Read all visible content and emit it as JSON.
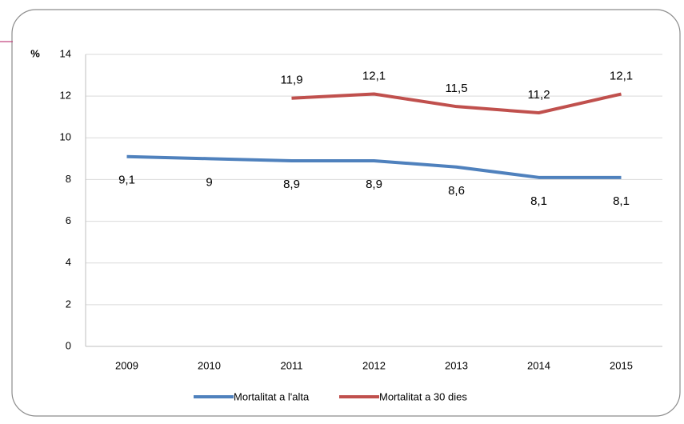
{
  "chart_data": {
    "type": "line",
    "y_label": "%",
    "categories": [
      "2009",
      "2010",
      "2011",
      "2012",
      "2013",
      "2014",
      "2015"
    ],
    "series": [
      {
        "name": "Mortalitat a l'alta",
        "color": "#4f81bd",
        "values": [
          9.1,
          9,
          8.9,
          8.9,
          8.6,
          8.1,
          8.1
        ],
        "value_labels": [
          "9,1",
          "9",
          "8,9",
          "8,9",
          "8,6",
          "8,1",
          "8,1"
        ]
      },
      {
        "name": "Mortalitat a 30 dies",
        "color": "#c0504d",
        "values": [
          null,
          null,
          11.9,
          12.1,
          11.5,
          11.2,
          12.1
        ],
        "value_labels": [
          null,
          null,
          "11,9",
          "12,1",
          "11,5",
          "11,2",
          "12,1"
        ]
      }
    ],
    "ylim": [
      0,
      14
    ],
    "yticks": [
      0,
      2,
      4,
      6,
      8,
      10,
      12,
      14
    ],
    "grid": true,
    "legend": "bottom"
  }
}
